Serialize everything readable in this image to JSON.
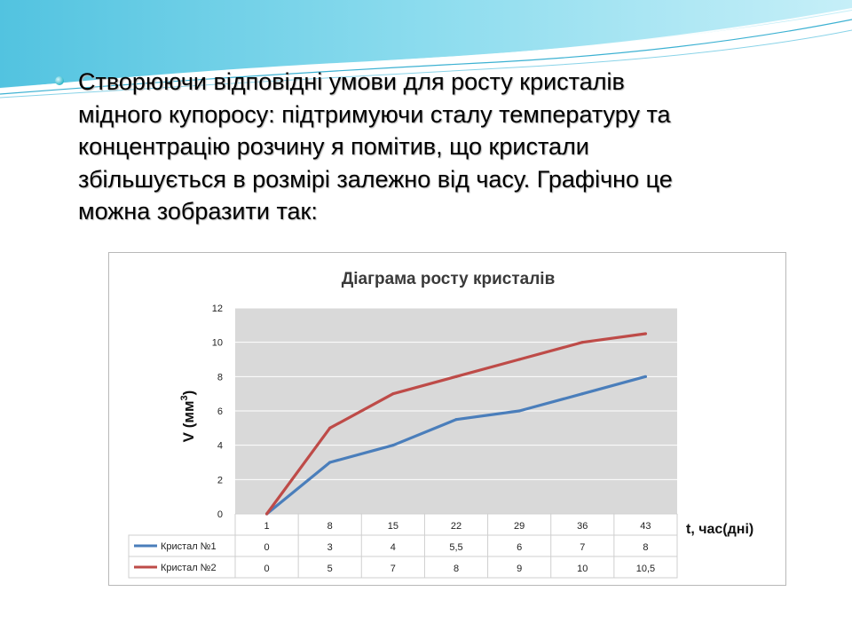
{
  "slide": {
    "paragraph": "Створюючи відповідні умови для росту кристалів мідного купоросу: підтримуючи сталу температуру та концентрацію розчину я помітив, що кристали збільшується в розмірі залежно від часу. Графічно це можна зобразити так:",
    "lines": [
      "Створюючи відповідні умови для росту кристалів",
      "мідного купоросу: підтримуючи сталу температуру та",
      "концентрацію розчину я помітив, що кристали",
      "збільшується в розмірі залежно від часу. Графічно це",
      "можна зобразити так:"
    ]
  },
  "chart_data": {
    "type": "line",
    "title": "Діаграма росту кристалів",
    "ylabel": "V (мм",
    "ylabel_sup": "3",
    "ylabel_end": ")",
    "xlabel": "t, час(дні)",
    "ylim": [
      0,
      12
    ],
    "yticks": [
      0,
      2,
      4,
      6,
      8,
      10,
      12
    ],
    "grid": true,
    "legend": "data-table",
    "categories": [
      "1",
      "8",
      "15",
      "22",
      "29",
      "36",
      "43"
    ],
    "series": [
      {
        "name": "Кристал №1",
        "color": "#4a7ebb",
        "values": [
          0,
          3,
          4,
          5.5,
          6,
          7,
          8
        ],
        "labels": [
          "0",
          "3",
          "4",
          "5,5",
          "6",
          "7",
          "8"
        ]
      },
      {
        "name": "Кристал №2",
        "color": "#be4b48",
        "values": [
          0,
          5,
          7,
          8,
          9,
          10,
          10.5
        ],
        "labels": [
          "0",
          "5",
          "7",
          "8",
          "9",
          "10",
          "10,5"
        ]
      }
    ]
  }
}
